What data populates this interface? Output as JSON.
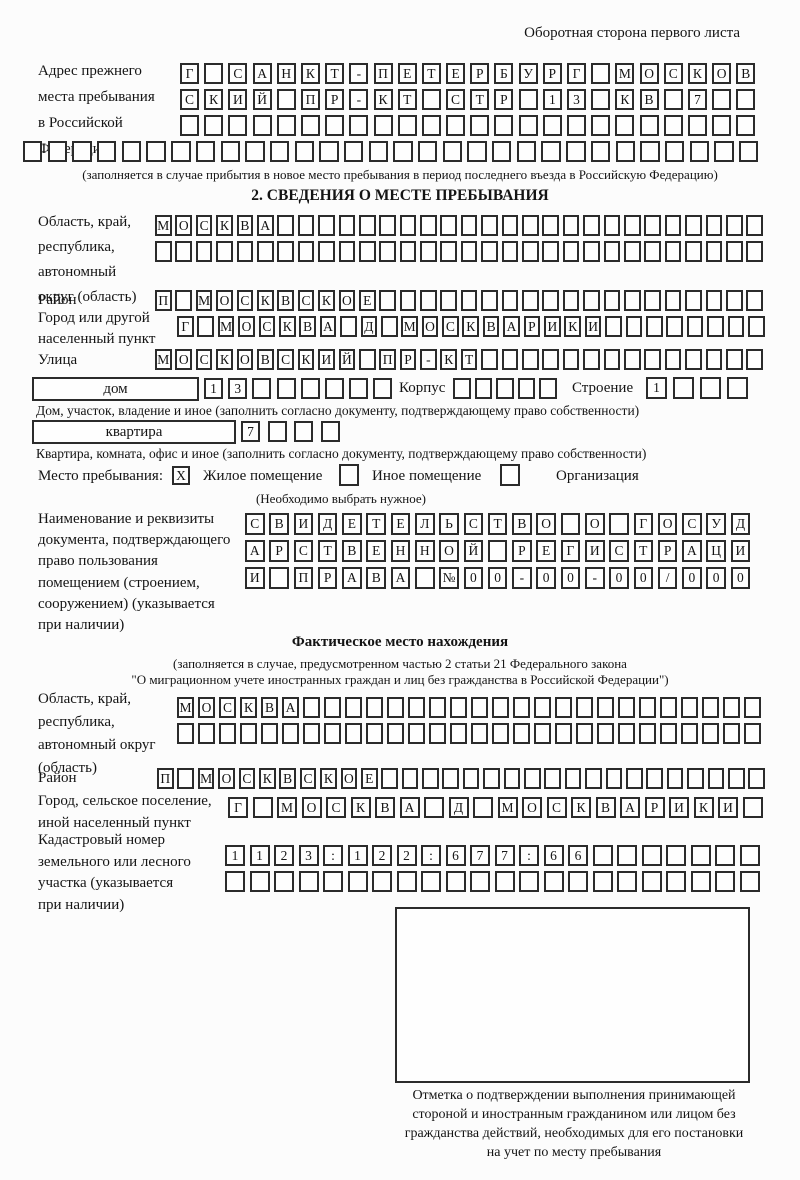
{
  "header_note": "Оборотная сторона первого листа",
  "prev": {
    "label_lines": [
      "Адрес прежнего",
      "места пребывания",
      "в Российской",
      "Федерации"
    ],
    "rows": [
      {
        "chars": "Г САНКТ-ПЕТЕРБУРГ МОСКОВ",
        "count": 24
      },
      {
        "chars": "СКИЙ ПР-КТ СТР 13 КВ 7",
        "count": 24
      },
      {
        "chars": "",
        "count": 24
      },
      {
        "chars": "",
        "count": 30
      }
    ],
    "note": "(заполняется в случае прибытия в новое место пребывания в период последнего въезда в Российскую Федерацию)"
  },
  "sec2": {
    "title": "2. СВЕДЕНИЯ О МЕСТЕ ПРЕБЫВАНИЯ",
    "region": {
      "label_lines": [
        "Область, край,",
        "республика,",
        "автономный",
        "округ (область)"
      ],
      "rows": [
        {
          "chars": "МОСКВА",
          "count": 30
        },
        {
          "chars": "",
          "count": 30
        }
      ]
    },
    "district": {
      "label": "Район",
      "row": {
        "chars": "П МОСКВСКОЕ",
        "count": 30
      }
    },
    "city": {
      "label_lines": [
        "Город или другой",
        "населенный пункт"
      ],
      "row": {
        "chars": "Г МОСКВА Д МОСКВАРИКИ",
        "count": 29
      }
    },
    "street": {
      "label": "Улица",
      "row": {
        "chars": "МОСКОВСКИЙ ПР-КТ",
        "count": 30
      }
    },
    "house": {
      "box_label": "дом",
      "num_row": {
        "chars": "13",
        "count": 8
      },
      "korpus_label": "Корпус",
      "korpus_row": {
        "chars": "",
        "count": 5
      },
      "stroenie_label": "Строение",
      "stroenie_row": {
        "chars": "1",
        "count": 4
      },
      "note": "Дом, участок, владение и иное (заполнить согласно документу, подтверждающему право собственности)"
    },
    "apartment": {
      "box_label": "квартира",
      "num_row": {
        "chars": "7",
        "count": 4
      },
      "note": "Квартира, комната, офис и иное (заполнить согласно документу, подтверждающему право собственности)"
    },
    "stay": {
      "label": "Место пребывания:",
      "box_residential": {
        "chars": "X",
        "count": 1
      },
      "residential_label": "Жилое помещение",
      "box_other": {
        "chars": "",
        "count": 1
      },
      "other_label": "Иное помещение",
      "box_org": {
        "chars": "",
        "count": 1
      },
      "org_label": "Организация",
      "note": "(Необходимо выбрать нужное)"
    },
    "doc": {
      "label_lines": [
        "Наименование и реквизиты",
        "документа, подтверждающего",
        "право пользования",
        "помещением (строением,",
        "сооружением) (указывается",
        "при наличии)"
      ],
      "rows": [
        {
          "chars": "СВИДЕТЕЛЬСТВО О ГОСУД",
          "count": 21
        },
        {
          "chars": "АРСТВЕННОЙ РЕГИСТРАЦИ",
          "count": 21
        },
        {
          "chars": "И ПРАВА №00-00-00/000",
          "count": 21
        }
      ]
    }
  },
  "fact": {
    "title": "Фактическое место нахождения",
    "note_lines": [
      "(заполняется в случае, предусмотренном частью 2 статьи 21 Федерального закона",
      "\"О миграционном учете иностранных граждан и лиц без гражданства в Российской Федерации\")"
    ],
    "region": {
      "label_lines": [
        "Область, край,",
        "республика,",
        "автономный округ",
        "(область)"
      ],
      "rows": [
        {
          "chars": "МОСКВА",
          "count": 28
        },
        {
          "chars": "",
          "count": 28
        }
      ]
    },
    "district": {
      "label": "Район",
      "row": {
        "chars": "П МОСКВСКОЕ",
        "count": 30
      }
    },
    "city": {
      "label_lines": [
        "Город, сельское поселение,",
        "иной населенный пункт"
      ],
      "row": {
        "chars": "Г МОСКВА Д МОСКВАРИКИ",
        "count": 22
      }
    },
    "cadastre": {
      "label_lines": [
        "Кадастровый номер",
        "земельного или лесного",
        "участка (указывается",
        "при наличии)"
      ],
      "rows": [
        {
          "chars": "1123:122:677:66",
          "count": 22
        },
        {
          "chars": "",
          "count": 22
        }
      ]
    },
    "stamp_note_lines": [
      "Отметка о подтверждении выполнения принимающей",
      "стороной и иностранным гражданином или лицом без",
      "гражданства действий, необходимых для его постановки",
      "на учет по месту пребывания"
    ]
  }
}
